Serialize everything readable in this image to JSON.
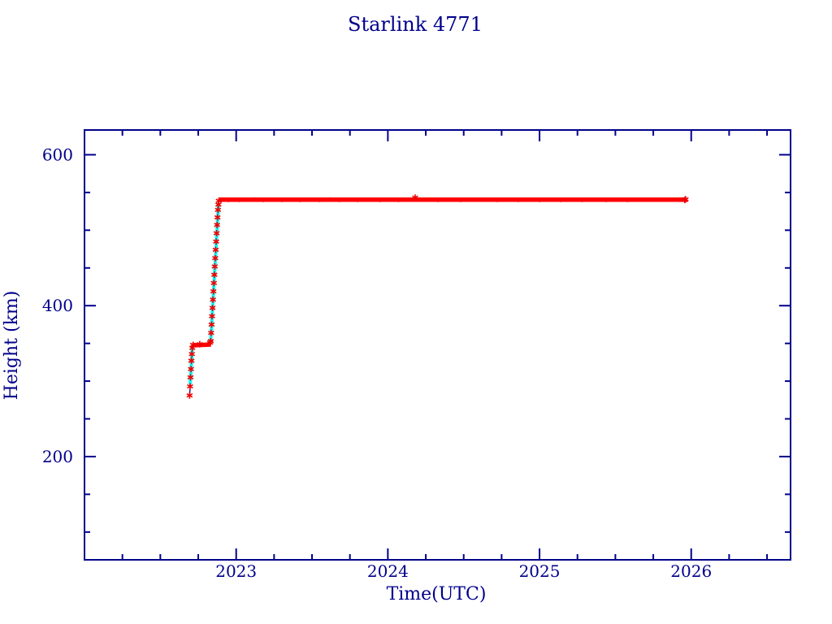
{
  "window": {
    "background": "#ffffff",
    "accent_color": "#00008b"
  },
  "chart_data": {
    "type": "line",
    "title": "Starlink 4771",
    "xlabel": "Time(UTC)",
    "ylabel": "Height (km)",
    "axis_color": "#00008b",
    "grid": false,
    "legend": "none",
    "xlim": [
      2022.0,
      2026.655
    ],
    "ylim": [
      63.2,
      632.8
    ],
    "x_major_ticks": [
      {
        "value": 2023,
        "label": "2023"
      },
      {
        "value": 2024,
        "label": "2024"
      },
      {
        "value": 2025,
        "label": "2025"
      },
      {
        "value": 2026,
        "label": "2026"
      }
    ],
    "x_minor_ticks": [
      2022.25,
      2022.5,
      2022.75,
      2023.25,
      2023.5,
      2023.75,
      2024.25,
      2024.5,
      2024.75,
      2025.25,
      2025.5,
      2025.75,
      2026.25,
      2026.5
    ],
    "y_major_ticks": [
      {
        "value": 200,
        "label": "200"
      },
      {
        "value": 400,
        "label": "400"
      },
      {
        "value": 600,
        "label": "600"
      }
    ],
    "y_minor_ticks": [
      100,
      150,
      250,
      300,
      350,
      450,
      500,
      550
    ],
    "description": "Orbital height history: launch insertion ~282 km in late Sep 2022, parking hold ~348 km through Oct 2022, orbit raise in Nov 2022, operational plateau ~540 km until late Nov 2025",
    "series": [
      {
        "name": "track-line",
        "style": "line",
        "color": "#00008b",
        "width": 1.3,
        "segments": [
          [
            [
              2022.693,
              280
            ],
            [
              2022.711,
              345
            ],
            [
              2022.714,
              347
            ],
            [
              2022.83,
              348
            ],
            [
              2022.833,
              353
            ],
            [
              2022.886,
              539
            ],
            [
              2022.893,
              540.5
            ],
            [
              2022.95,
              540.5
            ]
          ]
        ]
      },
      {
        "name": "model-line",
        "style": "line",
        "color": "#00ffff",
        "width": 4,
        "segments": [
          [
            [
              2022.697,
              296
            ],
            [
              2022.711,
              345
            ]
          ],
          [
            [
              2022.713,
              347
            ],
            [
              2022.724,
              347
            ]
          ],
          [
            [
              2022.832,
              352
            ],
            [
              2022.884,
              536
            ]
          ]
        ]
      },
      {
        "name": "observed-line",
        "style": "line",
        "color": "#ff0000",
        "width": 5.5,
        "segments": [
          [
            [
              2022.712,
              347.5
            ],
            [
              2022.834,
              348.5
            ]
          ],
          [
            [
              2022.887,
              540.5
            ],
            [
              2025.963,
              540.5
            ]
          ]
        ]
      },
      {
        "name": "observed-markers",
        "style": "asterisk",
        "color": "#ee0000",
        "size": 4,
        "points": [
          [
            2022.693,
            281
          ],
          [
            2022.696,
            293
          ],
          [
            2022.699,
            305
          ],
          [
            2022.702,
            316
          ],
          [
            2022.705,
            327
          ],
          [
            2022.708,
            336
          ],
          [
            2022.711,
            344
          ],
          [
            2022.716,
            348
          ],
          [
            2022.76,
            349
          ],
          [
            2022.828,
            351
          ],
          [
            2022.832,
            353
          ],
          [
            2022.835,
            364
          ],
          [
            2022.838,
            375
          ],
          [
            2022.841,
            386
          ],
          [
            2022.844,
            397
          ],
          [
            2022.847,
            408
          ],
          [
            2022.85,
            419
          ],
          [
            2022.853,
            430
          ],
          [
            2022.856,
            441
          ],
          [
            2022.859,
            452
          ],
          [
            2022.862,
            463
          ],
          [
            2022.865,
            474
          ],
          [
            2022.868,
            485
          ],
          [
            2022.871,
            496
          ],
          [
            2022.874,
            507
          ],
          [
            2022.877,
            517
          ],
          [
            2022.88,
            527
          ],
          [
            2022.883,
            534
          ],
          [
            2022.886,
            539
          ],
          [
            2024.18,
            543.2
          ],
          [
            2025.958,
            540
          ],
          [
            2025.963,
            541
          ]
        ]
      },
      {
        "name": "observed-dots",
        "style": "dot",
        "color": "#ff0000",
        "size": 1.3,
        "points": [
          [
            2022.95,
            538.6
          ],
          [
            2023.02,
            538.6
          ],
          [
            2023.18,
            538.6
          ],
          [
            2023.3,
            538.6
          ],
          [
            2023.42,
            538.6
          ],
          [
            2023.55,
            538.6
          ],
          [
            2023.68,
            538.6
          ],
          [
            2023.8,
            538.6
          ],
          [
            2023.95,
            538.6
          ],
          [
            2024.07,
            538.6
          ],
          [
            2024.33,
            538.6
          ],
          [
            2024.48,
            538.6
          ],
          [
            2024.72,
            538.6
          ],
          [
            2024.86,
            538.6
          ],
          [
            2025.0,
            538.6
          ],
          [
            2025.14,
            538.6
          ],
          [
            2025.28,
            538.6
          ],
          [
            2025.44,
            538.6
          ],
          [
            2025.58,
            538.6
          ],
          [
            2023.12,
            542.2
          ],
          [
            2023.62,
            542.2
          ]
        ]
      }
    ]
  }
}
